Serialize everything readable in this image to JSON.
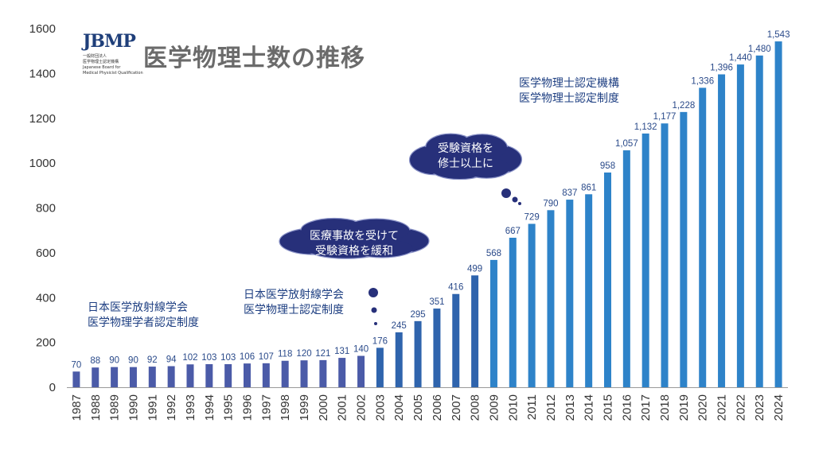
{
  "title": "医学物理士数の推移",
  "logo": {
    "mark": "JBMP",
    "line1": "一般財団法人",
    "line2": "医学物理士認定機構",
    "line3": "Japanese Board for",
    "line4": "Medical Physicist Qualification"
  },
  "notes": {
    "era1": [
      "日本医学放射線学会",
      "医学物理学者認定制度"
    ],
    "era2": [
      "日本医学放射線学会",
      "医学物理士認定制度"
    ],
    "era3": [
      "医学物理士認定機構",
      "医学物理士認定制度"
    ]
  },
  "clouds": {
    "c1": [
      "医療事故を受けて",
      "受験資格を緩和"
    ],
    "c2": [
      "受験資格を",
      "修士以上に"
    ]
  },
  "colors": {
    "era1": "#4b5ba8",
    "era2": "#2f64ad",
    "era3": "#2e83c9",
    "cloud": "#27307a",
    "label": "#2a4a8a"
  },
  "chart_data": {
    "type": "bar",
    "ylim": [
      0,
      1600
    ],
    "yticks": [
      0,
      200,
      400,
      600,
      800,
      1000,
      1200,
      1400,
      1600
    ],
    "grid": false,
    "categories": [
      "1987",
      "1988",
      "1989",
      "1990",
      "1991",
      "1992",
      "1993",
      "1994",
      "1995",
      "1996",
      "1997",
      "1998",
      "1999",
      "2000",
      "2001",
      "2002",
      "2003",
      "2004",
      "2005",
      "2006",
      "2007",
      "2008",
      "2009",
      "2010",
      "2011",
      "2012",
      "2013",
      "2014",
      "2015",
      "2016",
      "2017",
      "2018",
      "2019",
      "2020",
      "2021",
      "2022",
      "2023",
      "2024"
    ],
    "values": [
      70,
      88,
      90,
      90,
      92,
      94,
      102,
      103,
      103,
      106,
      107,
      118,
      120,
      121,
      131,
      140,
      176,
      245,
      295,
      351,
      416,
      499,
      568,
      667,
      729,
      790,
      837,
      861,
      958,
      1057,
      1132,
      1177,
      1228,
      1336,
      1396,
      1440,
      1480,
      1543
    ],
    "labels": [
      "70",
      "88",
      "90",
      "90",
      "92",
      "94",
      "102",
      "103",
      "103",
      "106",
      "107",
      "118",
      "120",
      "121",
      "131",
      "140",
      "176",
      "245",
      "295",
      "351",
      "416",
      "499",
      "568",
      "667",
      "729",
      "790",
      "837",
      "861",
      "958",
      "1,057",
      "1,132",
      "1,177",
      "1,228",
      "1,336",
      "1,396",
      "1,440",
      "1,480",
      "1,543"
    ]
  }
}
